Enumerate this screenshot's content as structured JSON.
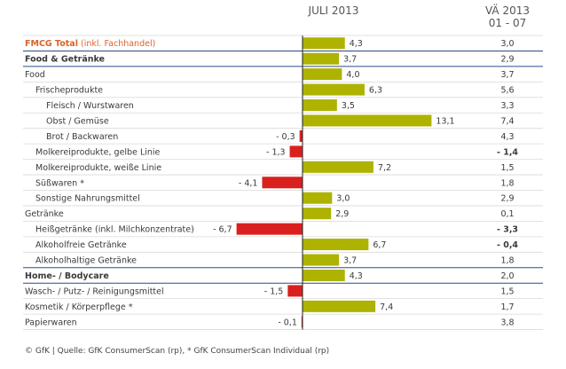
{
  "chart_data": {
    "type": "bar",
    "headers": {
      "juli": "JULI 2013",
      "va_line1": "VÄ 2013",
      "va_line2": "01 - 07"
    },
    "rows": [
      {
        "label": "FMCG Total",
        "label_suffix": " (inkl. Fachhandel)",
        "style": "fmcg",
        "indent": 0,
        "value": 4.3,
        "value_text": "4,3",
        "va": "3,0",
        "va_negative": false
      },
      {
        "label": "Food & Getränke",
        "label_suffix": "",
        "style": "section",
        "indent": 0,
        "value": 3.7,
        "value_text": "3,7",
        "va": "2,9",
        "va_negative": false
      },
      {
        "label": "Food",
        "label_suffix": "",
        "style": "normal",
        "indent": 0,
        "value": 4.0,
        "value_text": "4,0",
        "va": "3,7",
        "va_negative": false
      },
      {
        "label": "Frischeprodukte",
        "label_suffix": "",
        "style": "normal",
        "indent": 1,
        "value": 6.3,
        "value_text": "6,3",
        "va": "5,6",
        "va_negative": false
      },
      {
        "label": "Fleisch / Wurstwaren",
        "label_suffix": "",
        "style": "normal",
        "indent": 2,
        "value": 3.5,
        "value_text": "3,5",
        "va": "3,3",
        "va_negative": false
      },
      {
        "label": "Obst / Gemüse",
        "label_suffix": "",
        "style": "normal",
        "indent": 2,
        "value": 13.1,
        "value_text": "13,1",
        "va": "7,4",
        "va_negative": false
      },
      {
        "label": "Brot / Backwaren",
        "label_suffix": "",
        "style": "normal",
        "indent": 2,
        "value": -0.3,
        "value_text": "- 0,3",
        "va": "4,3",
        "va_negative": false
      },
      {
        "label": "Molkereiprodukte, gelbe Linie",
        "label_suffix": "",
        "style": "normal",
        "indent": 1,
        "value": -1.3,
        "value_text": "- 1,3",
        "va": "- 1,4",
        "va_negative": true
      },
      {
        "label": "Molkereiprodukte, weiße Linie",
        "label_suffix": "",
        "style": "normal",
        "indent": 1,
        "value": 7.2,
        "value_text": "7,2",
        "va": "1,5",
        "va_negative": false
      },
      {
        "label": "Süßwaren *",
        "label_suffix": "",
        "style": "normal",
        "indent": 1,
        "value": -4.1,
        "value_text": "- 4,1",
        "va": "1,8",
        "va_negative": false
      },
      {
        "label": "Sonstige Nahrungsmittel",
        "label_suffix": "",
        "style": "normal",
        "indent": 1,
        "value": 3.0,
        "value_text": "3,0",
        "va": "2,9",
        "va_negative": false
      },
      {
        "label": "Getränke",
        "label_suffix": "",
        "style": "normal",
        "indent": 0,
        "value": 2.9,
        "value_text": "2,9",
        "va": "0,1",
        "va_negative": false
      },
      {
        "label": "Heißgetränke (inkl. Milchkonzentrate)",
        "label_suffix": "",
        "style": "normal",
        "indent": 1,
        "value": -6.7,
        "value_text": "- 6,7",
        "va": "- 3,3",
        "va_negative": true
      },
      {
        "label": "Alkoholfreie Getränke",
        "label_suffix": "",
        "style": "normal",
        "indent": 1,
        "value": 6.7,
        "value_text": "6,7",
        "va": "- 0,4",
        "va_negative": true
      },
      {
        "label": "Alkoholhaltige Getränke",
        "label_suffix": "",
        "style": "normal",
        "indent": 1,
        "value": 3.7,
        "value_text": "3,7",
        "va": "1,8",
        "va_negative": false
      },
      {
        "label": "Home- / Bodycare",
        "label_suffix": "",
        "style": "section",
        "indent": 0,
        "value": 4.3,
        "value_text": "4,3",
        "va": "2,0",
        "va_negative": false
      },
      {
        "label": "Wasch- / Putz- / Reinigungsmittel",
        "label_suffix": "",
        "style": "normal",
        "indent": 0,
        "value": -1.5,
        "value_text": "- 1,5",
        "va": "1,5",
        "va_negative": false
      },
      {
        "label": "Kosmetik / Körperpflege *",
        "label_suffix": "",
        "style": "normal",
        "indent": 0,
        "value": 7.4,
        "value_text": "7,4",
        "va": "1,7",
        "va_negative": false
      },
      {
        "label": "Papierwaren",
        "label_suffix": "",
        "style": "normal",
        "indent": 0,
        "value": -0.1,
        "value_text": "- 0,1",
        "va": "3,8",
        "va_negative": false
      }
    ],
    "footnote": "© GfK | Quelle: GfK ConsumerScan (rp), * GfK ConsumerScan Individual (rp)",
    "colors": {
      "positive": "#adb300",
      "negative": "#d9201e",
      "fmcg_text": "#d9632b",
      "section_text": "#1f3f86",
      "section_rule": "#2b4a8b",
      "row_rule": "#d9d9d9",
      "va_negative": "#c8181e",
      "axis": "#222222"
    }
  }
}
